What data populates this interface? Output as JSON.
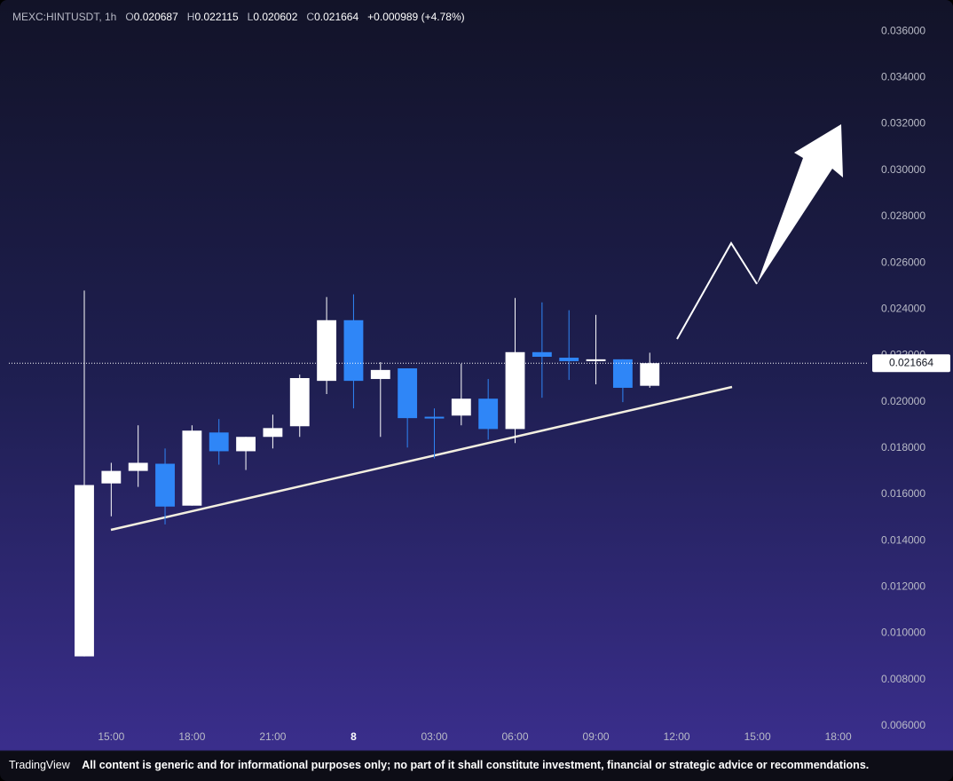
{
  "chart_data": {
    "type": "candlestick",
    "header": {
      "symbol": "MEXC:HINTUSDT, 1h",
      "open_label": "O",
      "open": 0.020687,
      "high_label": "H",
      "high": 0.022115,
      "low_label": "L",
      "low": 0.020602,
      "close_label": "C",
      "close": 0.021664,
      "change": "+0.000989",
      "change_pct": "(+4.78%)"
    },
    "categories": [
      null,
      "15:00",
      null,
      null,
      "18:00",
      null,
      null,
      "21:00",
      null,
      null,
      "8",
      null,
      null,
      "03:00",
      null,
      null,
      "06:00",
      null,
      null,
      "09:00",
      null,
      null,
      "12:00",
      null,
      null,
      "15:00",
      null,
      null,
      "18:00",
      null
    ],
    "open": [
      0.009,
      0.01647,
      0.01701,
      0.01732,
      0.01551,
      0.01867,
      0.01786,
      0.01848,
      0.01894,
      0.0209,
      0.02352,
      0.02098,
      0.02144,
      0.01935,
      0.0194,
      0.02013,
      0.01882,
      0.02214,
      0.0219,
      0.02175,
      0.02183,
      0.020687,
      null,
      null,
      null,
      null,
      null,
      null,
      null,
      null
    ],
    "high": [
      0.0248,
      0.01736,
      0.01898,
      0.01798,
      0.01898,
      0.01925,
      0.01848,
      0.01944,
      0.02117,
      0.02452,
      0.02464,
      0.02171,
      0.02144,
      0.01971,
      0.02164,
      0.02098,
      0.02448,
      0.02429,
      0.02395,
      0.02375,
      0.02183,
      0.022115,
      null,
      null,
      null,
      null,
      null,
      null,
      null,
      null
    ],
    "low": [
      0.009,
      0.01505,
      0.01632,
      0.0147,
      0.01551,
      0.01728,
      0.01705,
      0.01798,
      0.01848,
      0.02033,
      0.01971,
      0.01848,
      0.01802,
      0.01755,
      0.01898,
      0.01836,
      0.01821,
      0.02017,
      0.02094,
      0.02075,
      0.01998,
      0.020602,
      null,
      null,
      null,
      null,
      null,
      null,
      null,
      null
    ],
    "close": [
      0.0164,
      0.01701,
      0.01736,
      0.01547,
      0.01875,
      0.01786,
      0.01848,
      0.01886,
      0.02102,
      0.02352,
      0.0209,
      0.02137,
      0.01929,
      0.0193,
      0.02013,
      0.01882,
      0.02214,
      0.02194,
      0.02175,
      0.02183,
      0.0206,
      0.021664,
      null,
      null,
      null,
      null,
      null,
      null,
      null,
      null
    ],
    "up_color": "#ffffff",
    "down_color": "#2f86f7",
    "ylim": [
      0.00515,
      0.03735
    ],
    "yticks": [
      {
        "value": 0.006,
        "label": "0.006000"
      },
      {
        "value": 0.008,
        "label": "0.008000"
      },
      {
        "value": 0.01,
        "label": "0.010000"
      },
      {
        "value": 0.012,
        "label": "0.012000"
      },
      {
        "value": 0.014,
        "label": "0.014000"
      },
      {
        "value": 0.016,
        "label": "0.016000"
      },
      {
        "value": 0.018,
        "label": "0.018000"
      },
      {
        "value": 0.02,
        "label": "0.020000"
      },
      {
        "value": 0.022,
        "label": "0.022000"
      },
      {
        "value": 0.024,
        "label": "0.024000"
      },
      {
        "value": 0.026,
        "label": "0.026000"
      },
      {
        "value": 0.028,
        "label": "0.028000"
      },
      {
        "value": 0.03,
        "label": "0.030000"
      },
      {
        "value": 0.032,
        "label": "0.032000"
      },
      {
        "value": 0.034,
        "label": "0.034000"
      },
      {
        "value": 0.036,
        "label": "0.036000"
      }
    ],
    "last_price": {
      "value": 0.021664,
      "label": "0.021664"
    },
    "footer": {
      "brand": "TradingView",
      "disclaimer": "All content is generic and for informational purposes only; no part of it shall constitute investment, financial or strategic advice or recommendations."
    }
  }
}
